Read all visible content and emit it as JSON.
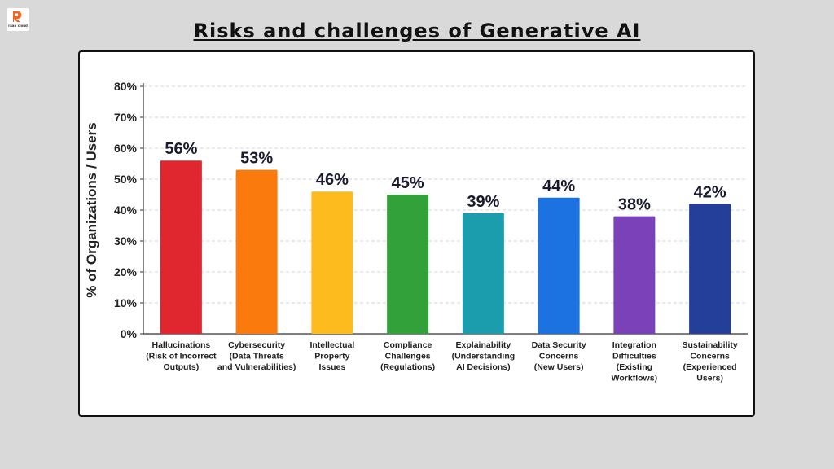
{
  "logo": {
    "brand": "raan cloud"
  },
  "page": {
    "title": "Risks and challenges of Generative AI"
  },
  "chart_data": {
    "type": "bar",
    "title": "",
    "xlabel": "",
    "ylabel": "% of Organizations / Users",
    "ylim": [
      0,
      80
    ],
    "yticks": [
      "0%",
      "10%",
      "20%",
      "30%",
      "40%",
      "50%",
      "60%",
      "70%",
      "80%"
    ],
    "grid": true,
    "categories": [
      [
        "Hallucinations",
        "(Risk of Incorrect",
        "Outputs)"
      ],
      [
        "Cybersecurity",
        "(Data Threats",
        "and Vulnerabilities)"
      ],
      [
        "Intellectual",
        "Property",
        "Issues"
      ],
      [
        "Compliance",
        "Challenges",
        "(Regulations)"
      ],
      [
        "Explainability",
        "(Understanding",
        "AI Decisions)"
      ],
      [
        "Data Security",
        "Concerns",
        "(New Users)"
      ],
      [
        "Integration",
        "Difficulties",
        "(Existing",
        "Workflows)"
      ],
      [
        "Sustainability",
        "Concerns",
        "(Experienced",
        "Users)"
      ]
    ],
    "values": [
      56,
      53,
      46,
      45,
      39,
      44,
      38,
      42
    ],
    "labels": [
      "56%",
      "53%",
      "46%",
      "45%",
      "39%",
      "44%",
      "38%",
      "42%"
    ],
    "colors": [
      "#e0262f",
      "#fb7a0e",
      "#fdbb1e",
      "#33a13a",
      "#1c9dad",
      "#1c72e0",
      "#7a41b8",
      "#233f9a"
    ]
  }
}
